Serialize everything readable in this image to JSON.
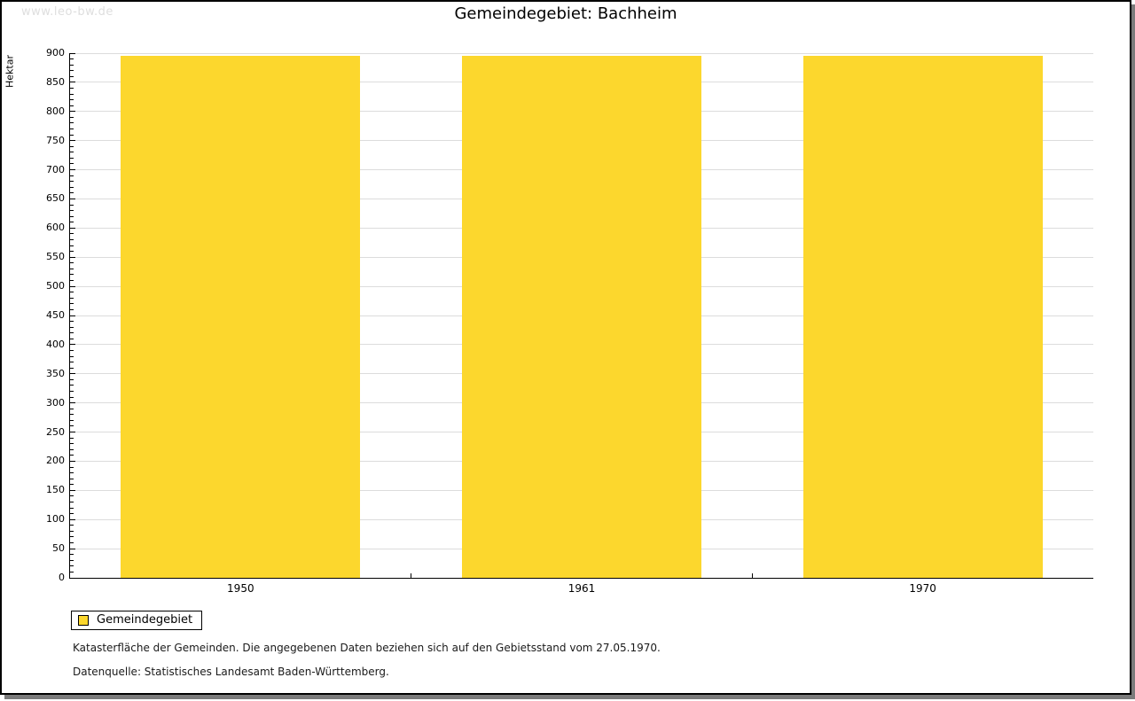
{
  "watermark": "www.leo-bw.de",
  "chart_data": {
    "type": "bar",
    "title": "Gemeindegebiet: Bachheim",
    "categories": [
      "1950",
      "1961",
      "1970"
    ],
    "series": [
      {
        "name": "Gemeindegebiet",
        "values": [
          895,
          895,
          895
        ],
        "color": "#fcd72d"
      }
    ],
    "xlabel": "",
    "ylabel": "Hektar",
    "ylim": [
      0,
      900
    ],
    "y_major_step": 50,
    "y_minor_step": 10,
    "grid": "horizontal-major",
    "legend_position": "bottom-left"
  },
  "legend": {
    "label": "Gemeindegebiet",
    "swatch_color": "#fcd72d"
  },
  "footer": {
    "line1": "Katasterfläche der Gemeinden. Die angegebenen Daten beziehen sich auf den Gebietsstand vom 27.05.1970.",
    "line2": "Datenquelle: Statistisches Landesamt Baden-Württemberg."
  },
  "colors": {
    "bar": "#fcd72d",
    "grid": "#dcdcdc",
    "axis": "#000000",
    "watermark": "#dedede",
    "frame_border": "#000000",
    "frame_shadow": "#7b7b7b"
  }
}
